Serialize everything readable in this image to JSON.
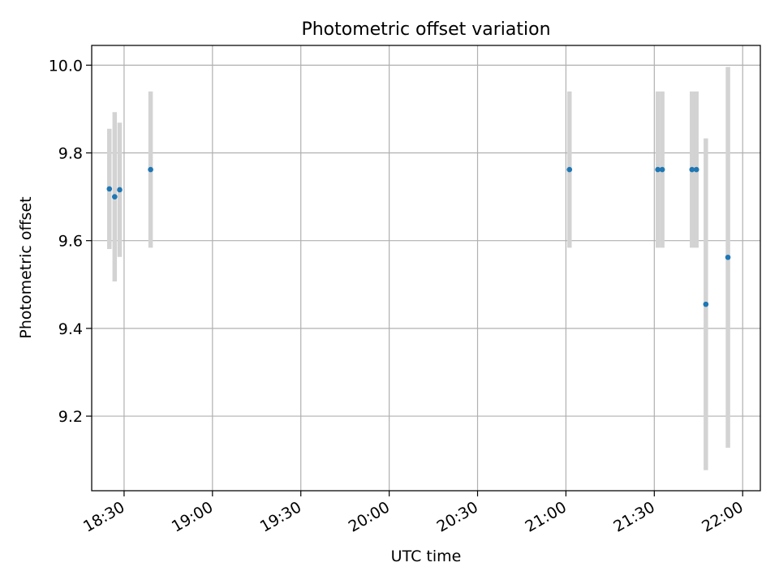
{
  "chart_data": {
    "type": "scatter",
    "title": "Photometric offset variation",
    "xlabel": "UTC time",
    "ylabel": "Photometric offset",
    "xlim": [
      "18:19",
      "22:06"
    ],
    "ylim": [
      9.03,
      10.045
    ],
    "x_ticks": [
      "18:30",
      "19:00",
      "19:30",
      "20:00",
      "20:30",
      "21:00",
      "21:30",
      "22:00"
    ],
    "y_ticks": [
      "9.2",
      "9.4",
      "9.6",
      "9.8",
      "10.0"
    ],
    "grid": true,
    "marker_color": "#1f77b4",
    "errorbar_color": "#d3d3d3",
    "points": [
      {
        "x": "18:25:00",
        "y": 9.718,
        "err": 0.137
      },
      {
        "x": "18:26:48",
        "y": 9.7,
        "err": 0.193
      },
      {
        "x": "18:28:30",
        "y": 9.716,
        "err": 0.153
      },
      {
        "x": "18:39:00",
        "y": 9.762,
        "err": 0.178
      },
      {
        "x": "21:01:12",
        "y": 9.762,
        "err": 0.178
      },
      {
        "x": "21:31:12",
        "y": 9.762,
        "err": 0.178
      },
      {
        "x": "21:32:42",
        "y": 9.762,
        "err": 0.178
      },
      {
        "x": "21:42:48",
        "y": 9.762,
        "err": 0.178
      },
      {
        "x": "21:44:18",
        "y": 9.762,
        "err": 0.178
      },
      {
        "x": "21:47:30",
        "y": 9.455,
        "err": 0.378
      },
      {
        "x": "21:55:00",
        "y": 9.562,
        "err": 0.434
      }
    ]
  }
}
